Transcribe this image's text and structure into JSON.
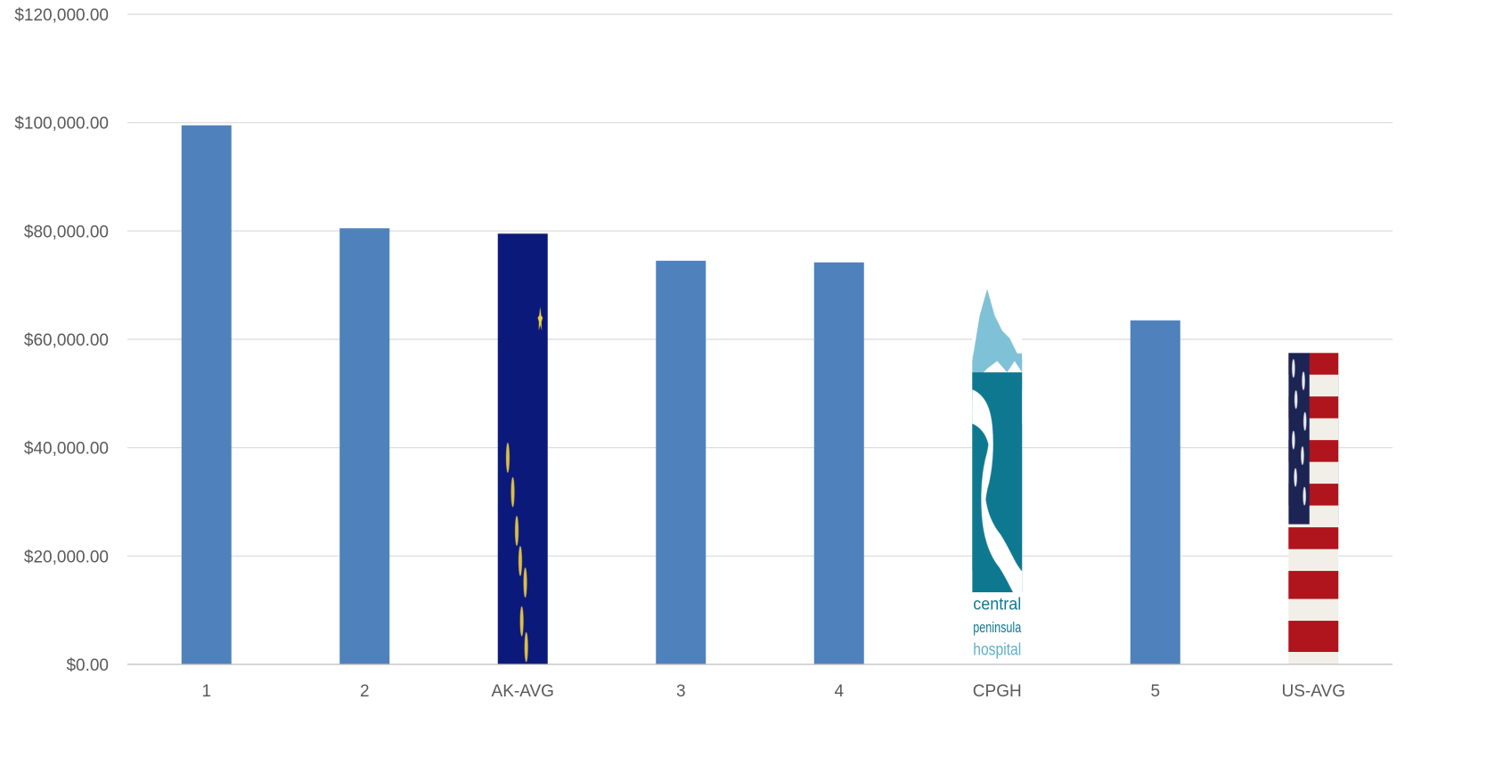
{
  "chart_data": {
    "type": "bar",
    "title": "",
    "xlabel": "",
    "ylabel": "",
    "ylim": [
      0,
      120000
    ],
    "yticks": [
      0,
      20000,
      40000,
      60000,
      80000,
      100000,
      120000
    ],
    "ytick_labels": [
      "$0.00",
      "$20,000.00",
      "$40,000.00",
      "$60,000.00",
      "$80,000.00",
      "$100,000.00",
      "$120,000.00"
    ],
    "grid": true,
    "legend": "none",
    "categories": [
      "1",
      "2",
      "AK-AVG",
      "3",
      "4",
      "CPGH",
      "5",
      "US-AVG"
    ],
    "values": [
      99500,
      80500,
      79500,
      74500,
      74200,
      70000,
      63500,
      57500
    ],
    "bar_fills": [
      "solid",
      "solid",
      "alaska-flag-image",
      "solid",
      "solid",
      "cpgh-logo-image",
      "solid",
      "us-flag-image"
    ],
    "bar_color": "#4f81bd",
    "grid_color": "#d9d9d9",
    "axis_color": "#bfbfbf"
  },
  "cpgh_logo": {
    "line1": "central",
    "line2": "peninsula",
    "line3": "hospital"
  }
}
